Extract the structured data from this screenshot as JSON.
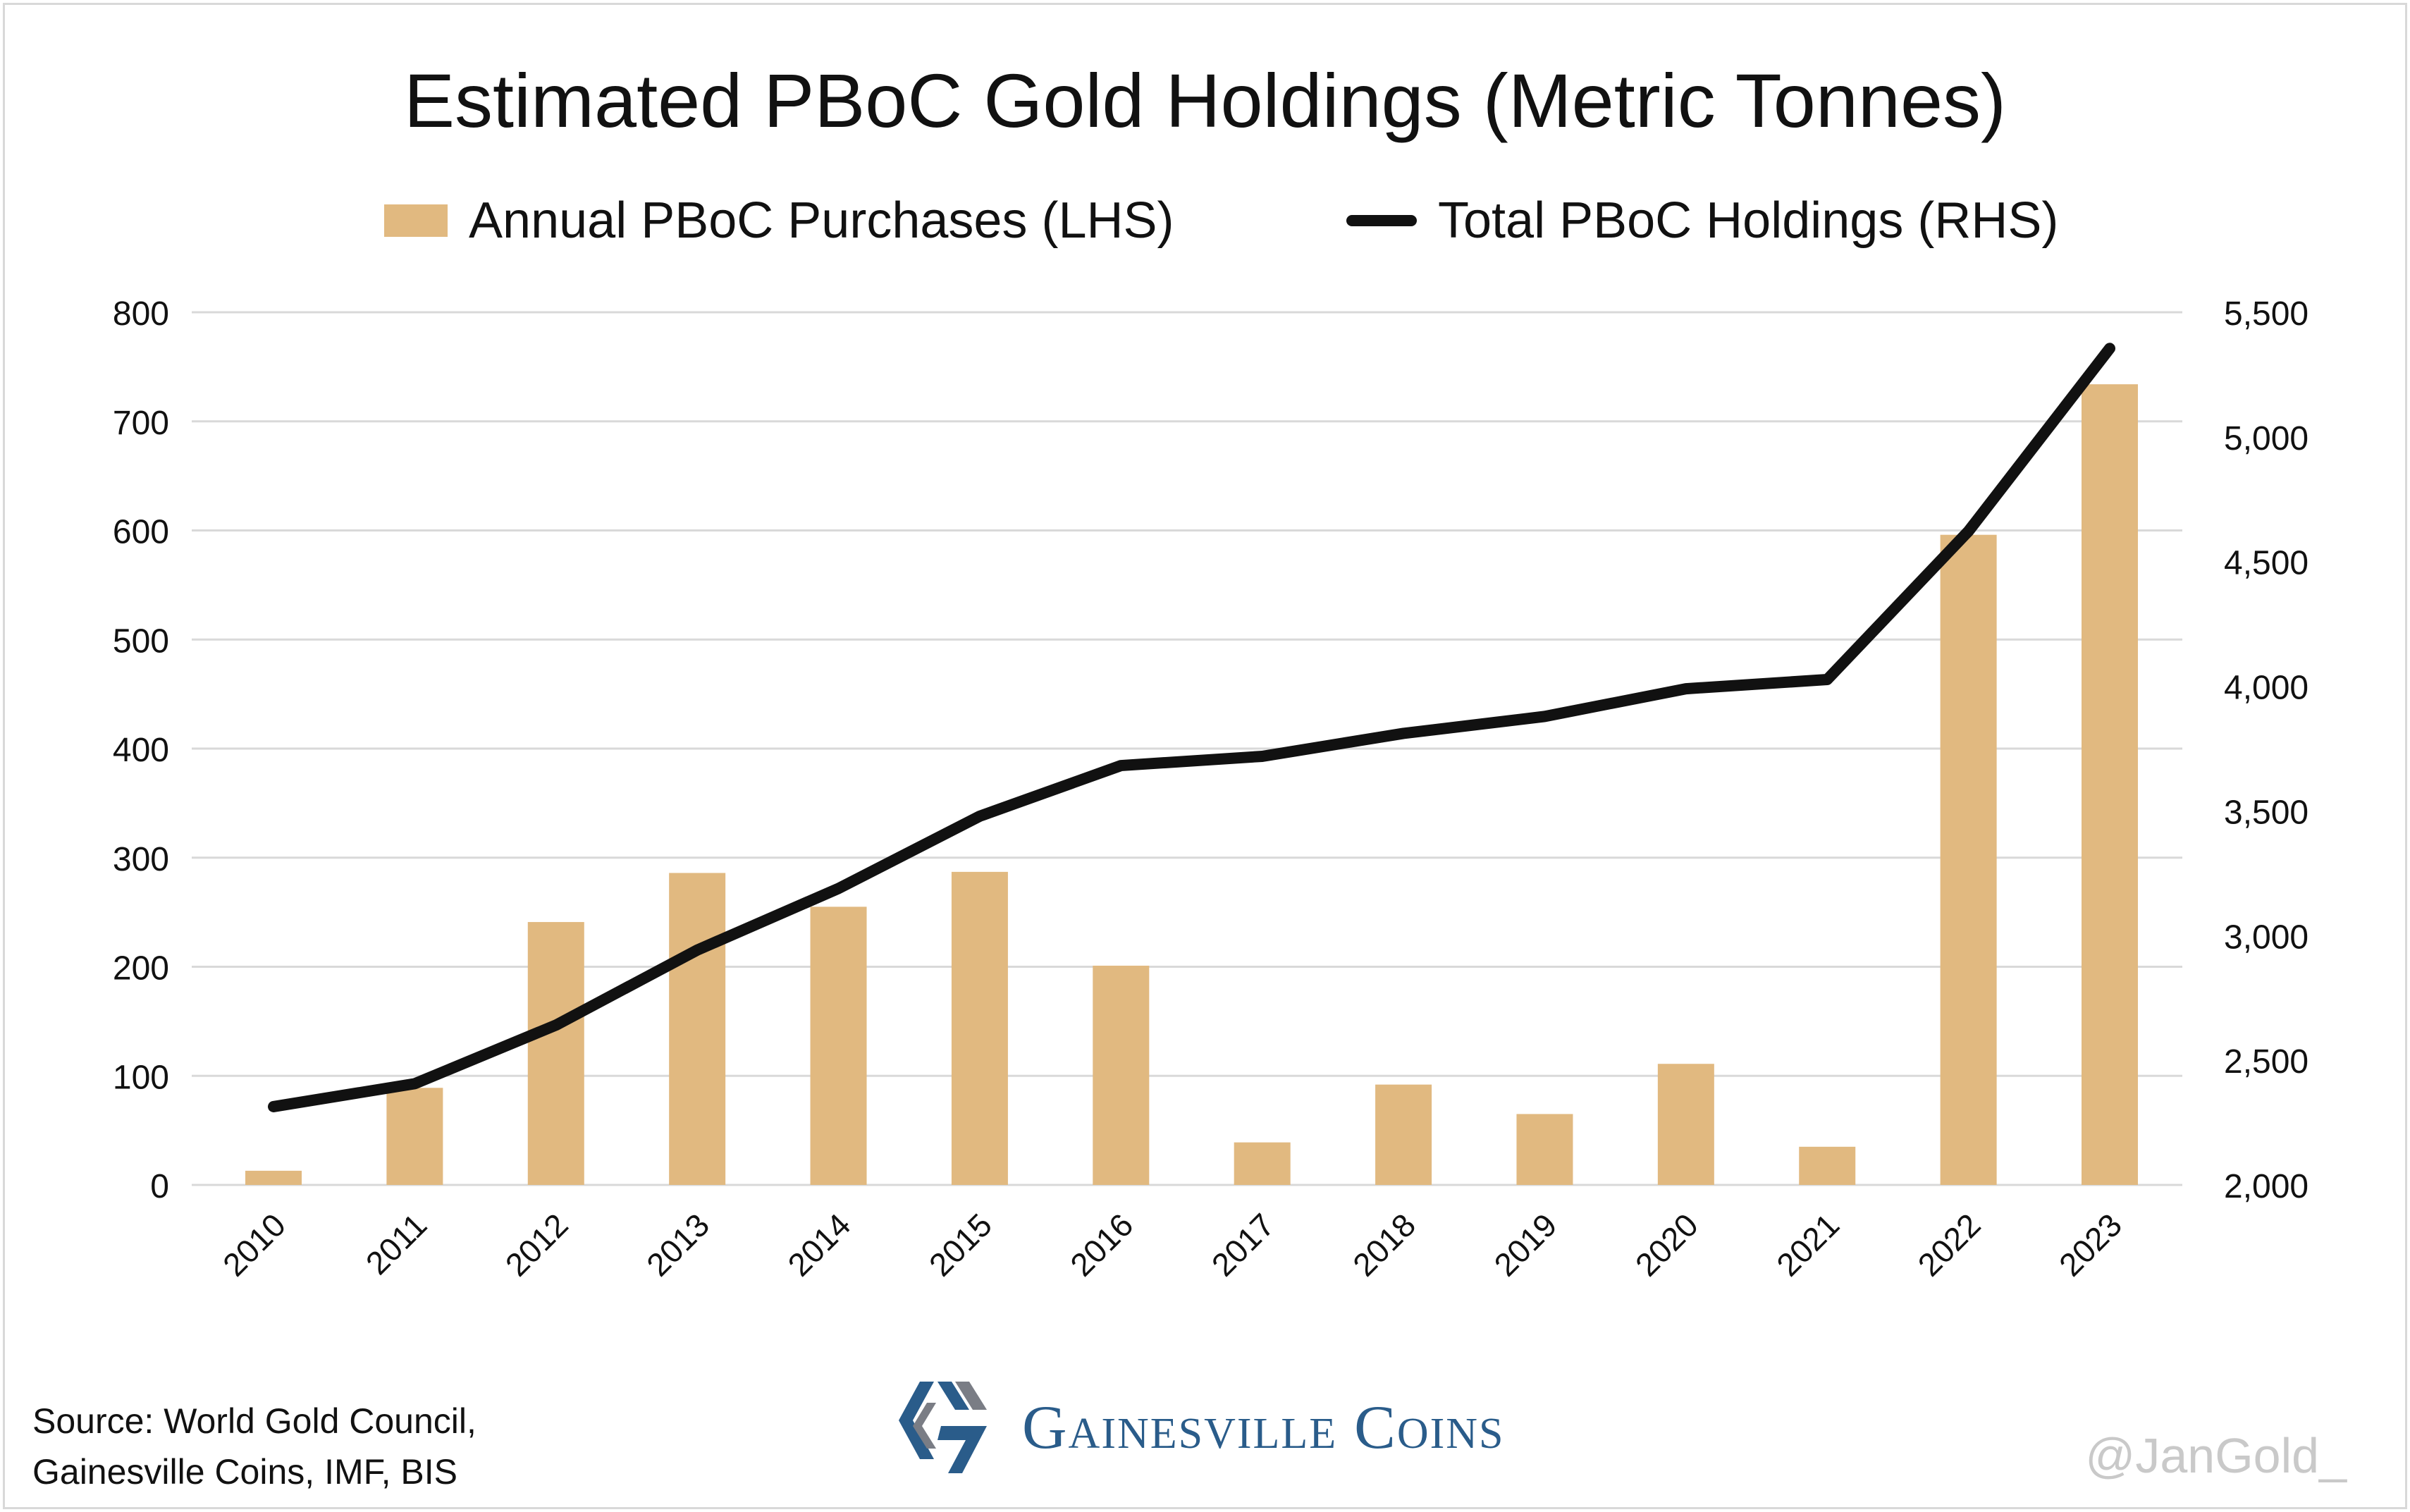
{
  "chart_data": {
    "type": "bar+line",
    "title": "Estimated PBoC Gold Holdings (Metric Tonnes)",
    "categories": [
      "2010",
      "2011",
      "2012",
      "2013",
      "2014",
      "2015",
      "2016",
      "2017",
      "2018",
      "2019",
      "2020",
      "2021",
      "2022",
      "2023"
    ],
    "series": [
      {
        "name": "Annual PBoC Purchases (LHS)",
        "type": "bar",
        "axis": "left",
        "color": "#e1b980",
        "values": [
          13,
          89,
          241,
          286,
          255,
          287,
          201,
          39,
          92,
          65,
          111,
          35,
          596,
          734
        ]
      },
      {
        "name": "Total PBoC Holdings (RHS)",
        "type": "line",
        "axis": "right",
        "color": "#111111",
        "values": [
          2314,
          2406,
          2641,
          2942,
          3189,
          3479,
          3682,
          3719,
          3811,
          3879,
          3990,
          4027,
          4622,
          5355
        ]
      }
    ],
    "y_left": {
      "range": [
        0,
        800
      ],
      "ticks": [
        "0",
        "100",
        "200",
        "300",
        "400",
        "500",
        "600",
        "700",
        "800"
      ]
    },
    "y_right": {
      "range": [
        2000,
        5500
      ],
      "ticks": [
        "2,000",
        "2,500",
        "3,000",
        "3,500",
        "4,000",
        "4,500",
        "5,000",
        "5,500"
      ]
    },
    "grid": true,
    "legend_position": "top"
  },
  "source": [
    "Source: World Gold Council,",
    "Gainesville Coins, IMF, BIS"
  ],
  "logo_text": "Gainesville Coins",
  "watermark": "@JanGold_"
}
